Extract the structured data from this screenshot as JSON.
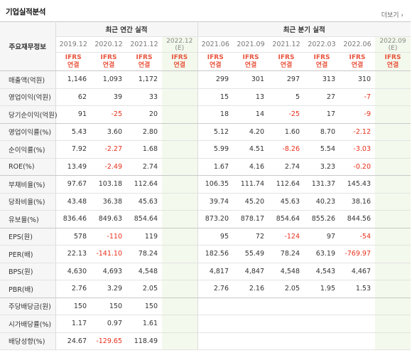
{
  "header": {
    "title": "기업실적분석",
    "more_label": "더보기 ›"
  },
  "table": {
    "label_header": "주요재무정보",
    "annual_group": "최근 연간 실적",
    "quarter_group": "최근 분기 실적",
    "annual_periods": [
      "2019.12",
      "2020.12",
      "2021.12",
      "2022.12"
    ],
    "annual_est_mark": "(E)",
    "quarter_periods": [
      "2021.06",
      "2021.09",
      "2021.12",
      "2022.03",
      "2022.06",
      "2022.09"
    ],
    "quarter_est_mark": "(E)",
    "ifrs_top": "IFRS",
    "ifrs_bottom": "연결",
    "rows": [
      {
        "label": "매출액(억원)",
        "annual": [
          "1,146",
          "1,093",
          "1,172",
          ""
        ],
        "quarter": [
          "299",
          "301",
          "297",
          "313",
          "310",
          ""
        ]
      },
      {
        "label": "영업이익(억원)",
        "annual": [
          "62",
          "39",
          "33",
          ""
        ],
        "quarter": [
          "15",
          "13",
          "5",
          "27",
          "-7",
          ""
        ]
      },
      {
        "label": "당기순이익(억원)",
        "annual": [
          "91",
          "-25",
          "20",
          ""
        ],
        "quarter": [
          "18",
          "14",
          "-25",
          "17",
          "-9",
          ""
        ]
      },
      {
        "label": "영업이익률(%)",
        "annual": [
          "5.43",
          "3.60",
          "2.80",
          ""
        ],
        "quarter": [
          "5.12",
          "4.20",
          "1.60",
          "8.70",
          "-2.12",
          ""
        ]
      },
      {
        "label": "순이익률(%)",
        "annual": [
          "7.92",
          "-2.27",
          "1.68",
          ""
        ],
        "quarter": [
          "5.99",
          "4.51",
          "-8.26",
          "5.54",
          "-3.03",
          ""
        ]
      },
      {
        "label": "ROE(%)",
        "annual": [
          "13.49",
          "-2.49",
          "2.74",
          ""
        ],
        "quarter": [
          "1.67",
          "4.16",
          "2.74",
          "3.23",
          "-0.20",
          ""
        ]
      },
      {
        "label": "부채비율(%)",
        "annual": [
          "97.67",
          "103.18",
          "112.64",
          ""
        ],
        "quarter": [
          "106.35",
          "111.74",
          "112.64",
          "131.37",
          "145.43",
          ""
        ]
      },
      {
        "label": "당좌비율(%)",
        "annual": [
          "43.48",
          "36.38",
          "45.63",
          ""
        ],
        "quarter": [
          "39.74",
          "45.20",
          "45.63",
          "40.23",
          "38.16",
          ""
        ]
      },
      {
        "label": "유보율(%)",
        "annual": [
          "836.46",
          "849.63",
          "854.64",
          ""
        ],
        "quarter": [
          "873.20",
          "878.17",
          "854.64",
          "855.26",
          "844.56",
          ""
        ]
      },
      {
        "label": "EPS(원)",
        "annual": [
          "578",
          "-110",
          "119",
          ""
        ],
        "quarter": [
          "95",
          "72",
          "-124",
          "97",
          "-54",
          ""
        ]
      },
      {
        "label": "PER(배)",
        "annual": [
          "22.13",
          "-141.10",
          "78.24",
          ""
        ],
        "quarter": [
          "182.56",
          "55.49",
          "78.24",
          "63.19",
          "-769.97",
          ""
        ]
      },
      {
        "label": "BPS(원)",
        "annual": [
          "4,630",
          "4,693",
          "4,548",
          ""
        ],
        "quarter": [
          "4,817",
          "4,847",
          "4,548",
          "4,543",
          "4,467",
          ""
        ]
      },
      {
        "label": "PBR(배)",
        "annual": [
          "2.76",
          "3.29",
          "2.05",
          ""
        ],
        "quarter": [
          "2.76",
          "2.16",
          "2.05",
          "1.95",
          "1.53",
          ""
        ]
      },
      {
        "label": "주당배당금(원)",
        "annual": [
          "150",
          "150",
          "150",
          ""
        ],
        "quarter": [
          "",
          "",
          "",
          "",
          "",
          ""
        ]
      },
      {
        "label": "시가배당률(%)",
        "annual": [
          "1.17",
          "0.97",
          "1.61",
          ""
        ],
        "quarter": [
          "",
          "",
          "",
          "",
          "",
          ""
        ]
      },
      {
        "label": "배당성향(%)",
        "annual": [
          "24.67",
          "-129.65",
          "118.49",
          ""
        ],
        "quarter": [
          "",
          "",
          "",
          "",
          "",
          ""
        ]
      }
    ]
  },
  "colors": {
    "negative": "#e8301c",
    "ifrs": "#e8543d",
    "estimate_bg": "#f3f9ec",
    "header_bg": "#f6f6f6"
  }
}
